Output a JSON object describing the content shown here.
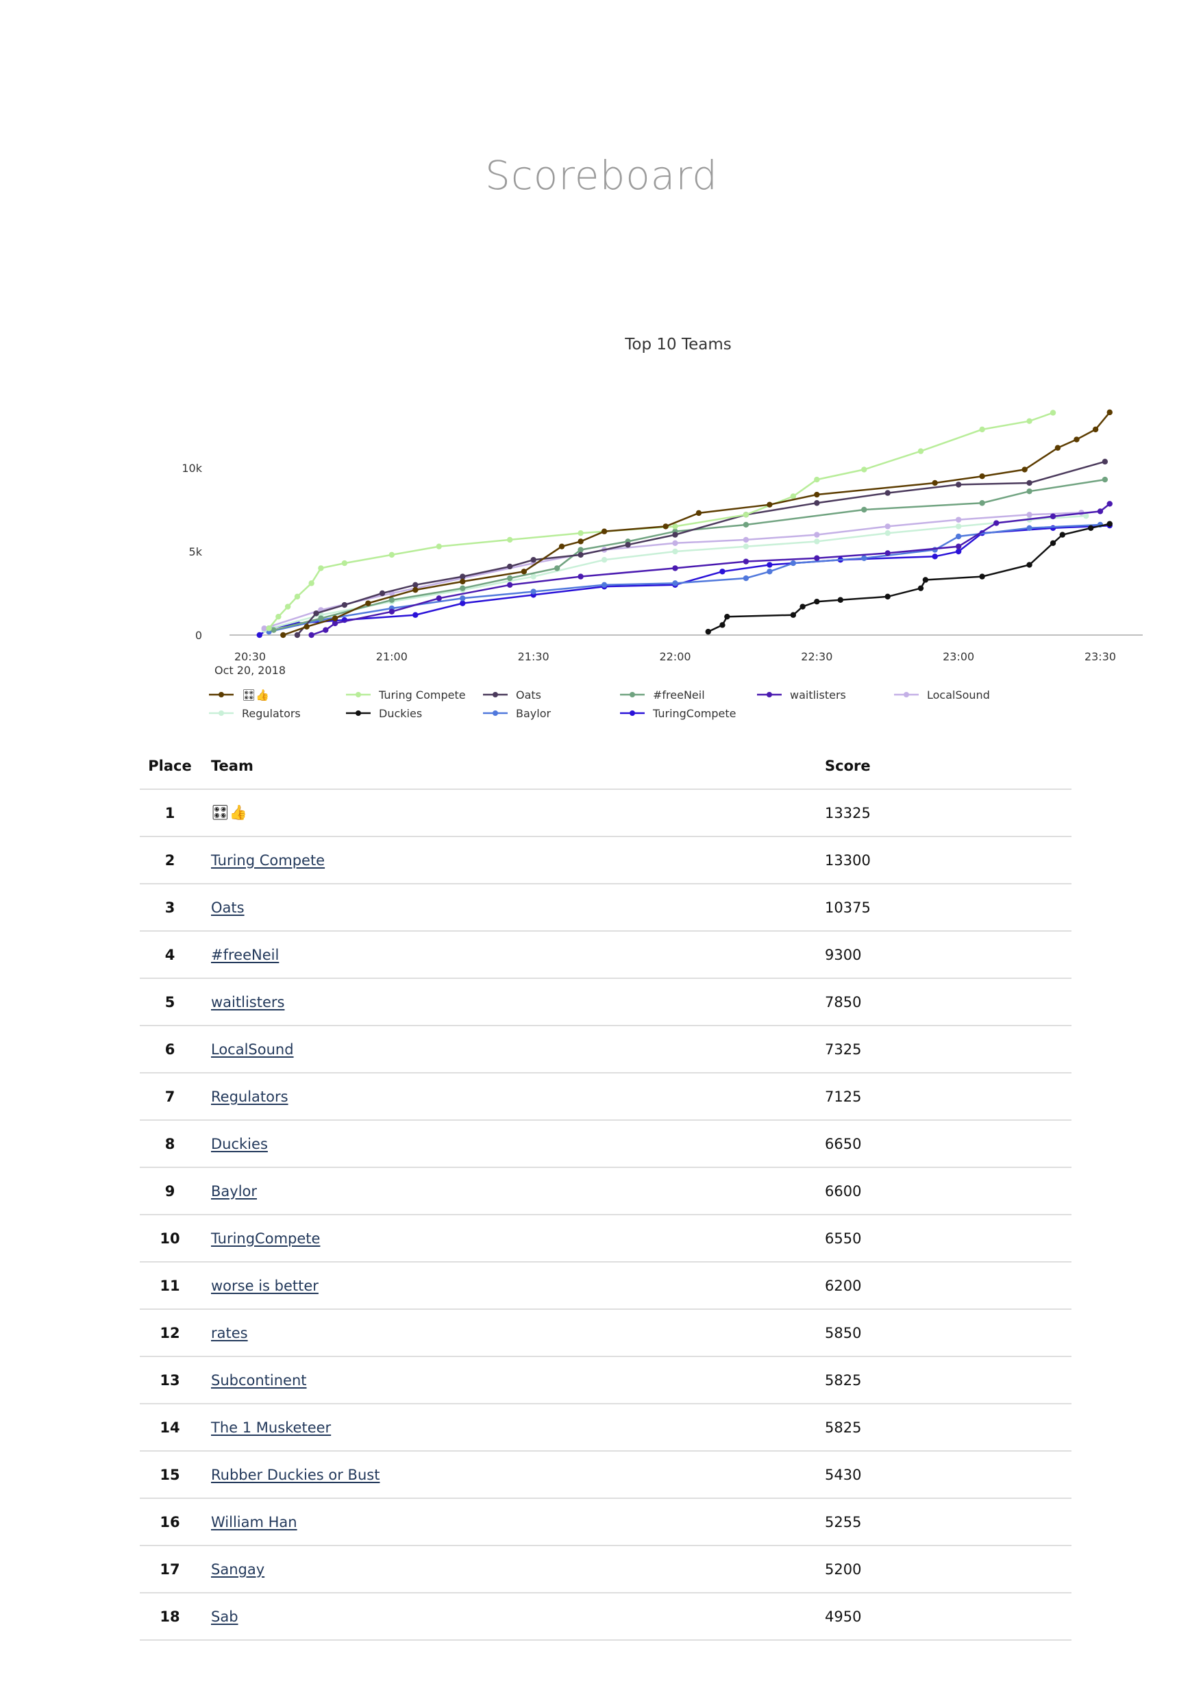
{
  "page": {
    "title": "Scoreboard"
  },
  "colors": {
    "grid_line": "#dedede",
    "link": "#23395b",
    "title": "#9b9b9b"
  },
  "table": {
    "headers": {
      "place": "Place",
      "team": "Team",
      "score": "Score"
    },
    "rows": [
      {
        "place": "1",
        "team": "🎛👍",
        "score": "13325"
      },
      {
        "place": "2",
        "team": "Turing Compete",
        "score": "13300"
      },
      {
        "place": "3",
        "team": "Oats",
        "score": "10375"
      },
      {
        "place": "4",
        "team": "#freeNeil",
        "score": "9300"
      },
      {
        "place": "5",
        "team": "waitlisters",
        "score": "7850"
      },
      {
        "place": "6",
        "team": "LocalSound",
        "score": "7325"
      },
      {
        "place": "7",
        "team": "Regulators",
        "score": "7125"
      },
      {
        "place": "8",
        "team": "Duckies",
        "score": "6650"
      },
      {
        "place": "9",
        "team": "Baylor",
        "score": "6600"
      },
      {
        "place": "10",
        "team": "TuringCompete",
        "score": "6550"
      },
      {
        "place": "11",
        "team": "worse is better",
        "score": "6200"
      },
      {
        "place": "12",
        "team": "rates",
        "score": "5850"
      },
      {
        "place": "13",
        "team": "Subcontinent",
        "score": "5825"
      },
      {
        "place": "14",
        "team": "The 1 Musketeer",
        "score": "5825"
      },
      {
        "place": "15",
        "team": "Rubber Duckies or Bust",
        "score": "5430"
      },
      {
        "place": "16",
        "team": "William Han",
        "score": "5255"
      },
      {
        "place": "17",
        "team": "Sangay",
        "score": "5200"
      },
      {
        "place": "18",
        "team": "Sab",
        "score": "4950"
      }
    ]
  },
  "chart_data": {
    "type": "line",
    "title": "Top 10 Teams",
    "xlabel": "",
    "ylabel": "",
    "x_ticks": [
      "20:30",
      "21:00",
      "21:30",
      "22:00",
      "22:30",
      "23:00",
      "23:30"
    ],
    "x_tick_sublabel": "Oct 20, 2018",
    "xlim": [
      "20:30",
      "23:33"
    ],
    "ylim": [
      0,
      14000
    ],
    "y_ticks": [
      0,
      5000,
      10000
    ],
    "y_tick_labels": [
      "0",
      "5k",
      "10k"
    ],
    "grid": false,
    "legend_position": "bottom",
    "series": [
      {
        "name": "🎛👍",
        "color": "#5c3c00",
        "points": [
          [
            "20:37",
            0
          ],
          [
            "20:42",
            500
          ],
          [
            "20:48",
            1000
          ],
          [
            "20:55",
            1900
          ],
          [
            "21:05",
            2700
          ],
          [
            "21:15",
            3200
          ],
          [
            "21:28",
            3800
          ],
          [
            "21:36",
            5300
          ],
          [
            "21:40",
            5600
          ],
          [
            "21:45",
            6200
          ],
          [
            "21:58",
            6500
          ],
          [
            "22:05",
            7300
          ],
          [
            "22:20",
            7800
          ],
          [
            "22:30",
            8400
          ],
          [
            "22:55",
            9100
          ],
          [
            "23:05",
            9500
          ],
          [
            "23:14",
            9900
          ],
          [
            "23:21",
            11200
          ],
          [
            "23:25",
            11700
          ],
          [
            "23:29",
            12300
          ],
          [
            "23:32",
            13325
          ]
        ]
      },
      {
        "name": "Turing Compete",
        "color": "#b8ed99",
        "points": [
          [
            "20:34",
            400
          ],
          [
            "20:36",
            1100
          ],
          [
            "20:38",
            1700
          ],
          [
            "20:40",
            2300
          ],
          [
            "20:43",
            3100
          ],
          [
            "20:45",
            4000
          ],
          [
            "20:50",
            4300
          ],
          [
            "21:00",
            4800
          ],
          [
            "21:10",
            5300
          ],
          [
            "21:25",
            5700
          ],
          [
            "21:40",
            6100
          ],
          [
            "22:00",
            6500
          ],
          [
            "22:15",
            7200
          ],
          [
            "22:25",
            8300
          ],
          [
            "22:30",
            9300
          ],
          [
            "22:40",
            9900
          ],
          [
            "22:52",
            11000
          ],
          [
            "23:05",
            12300
          ],
          [
            "23:15",
            12800
          ],
          [
            "23:20",
            13300
          ]
        ]
      },
      {
        "name": "Oats",
        "color": "#4b3a5c",
        "points": [
          [
            "20:40",
            0
          ],
          [
            "20:44",
            1300
          ],
          [
            "20:50",
            1800
          ],
          [
            "20:58",
            2500
          ],
          [
            "21:05",
            3000
          ],
          [
            "21:15",
            3500
          ],
          [
            "21:25",
            4100
          ],
          [
            "21:30",
            4500
          ],
          [
            "21:40",
            4800
          ],
          [
            "21:50",
            5400
          ],
          [
            "22:00",
            6000
          ],
          [
            "22:15",
            7200
          ],
          [
            "22:30",
            7900
          ],
          [
            "22:45",
            8500
          ],
          [
            "23:00",
            9000
          ],
          [
            "23:15",
            9100
          ],
          [
            "23:31",
            10375
          ]
        ]
      },
      {
        "name": "#freeNeil",
        "color": "#70a380",
        "points": [
          [
            "20:35",
            300
          ],
          [
            "20:45",
            1000
          ],
          [
            "21:00",
            2100
          ],
          [
            "21:15",
            2800
          ],
          [
            "21:25",
            3400
          ],
          [
            "21:35",
            4000
          ],
          [
            "21:40",
            5100
          ],
          [
            "21:50",
            5600
          ],
          [
            "22:00",
            6200
          ],
          [
            "22:15",
            6600
          ],
          [
            "22:40",
            7500
          ],
          [
            "23:05",
            7900
          ],
          [
            "23:15",
            8600
          ],
          [
            "23:31",
            9300
          ]
        ]
      },
      {
        "name": "waitlisters",
        "color": "#4a1ab0",
        "points": [
          [
            "20:43",
            0
          ],
          [
            "20:46",
            300
          ],
          [
            "20:48",
            700
          ],
          [
            "21:00",
            1400
          ],
          [
            "21:10",
            2200
          ],
          [
            "21:25",
            3000
          ],
          [
            "21:40",
            3500
          ],
          [
            "22:00",
            4000
          ],
          [
            "22:15",
            4400
          ],
          [
            "22:30",
            4600
          ],
          [
            "22:45",
            4900
          ],
          [
            "23:00",
            5300
          ],
          [
            "23:08",
            6700
          ],
          [
            "23:20",
            7100
          ],
          [
            "23:30",
            7400
          ],
          [
            "23:32",
            7850
          ]
        ]
      },
      {
        "name": "LocalSound",
        "color": "#c4b0e6",
        "points": [
          [
            "20:33",
            400
          ],
          [
            "20:45",
            1500
          ],
          [
            "21:00",
            2500
          ],
          [
            "21:15",
            3400
          ],
          [
            "21:30",
            4300
          ],
          [
            "21:45",
            5100
          ],
          [
            "22:00",
            5500
          ],
          [
            "22:15",
            5700
          ],
          [
            "22:30",
            6000
          ],
          [
            "22:45",
            6500
          ],
          [
            "23:00",
            6900
          ],
          [
            "23:15",
            7200
          ],
          [
            "23:26",
            7325
          ]
        ]
      },
      {
        "name": "Regulators",
        "color": "#c9f0d8",
        "points": [
          [
            "20:33",
            300
          ],
          [
            "20:45",
            1200
          ],
          [
            "21:00",
            2000
          ],
          [
            "21:15",
            2700
          ],
          [
            "21:30",
            3500
          ],
          [
            "21:45",
            4500
          ],
          [
            "22:00",
            5000
          ],
          [
            "22:15",
            5300
          ],
          [
            "22:30",
            5600
          ],
          [
            "22:45",
            6100
          ],
          [
            "23:00",
            6500
          ],
          [
            "23:15",
            6900
          ],
          [
            "23:27",
            7125
          ]
        ]
      },
      {
        "name": "Duckies",
        "color": "#111111",
        "points": [
          [
            "22:07",
            200
          ],
          [
            "22:10",
            600
          ],
          [
            "22:11",
            1100
          ],
          [
            "22:25",
            1200
          ],
          [
            "22:27",
            1700
          ],
          [
            "22:30",
            2000
          ],
          [
            "22:35",
            2100
          ],
          [
            "22:45",
            2300
          ],
          [
            "22:52",
            2800
          ],
          [
            "22:53",
            3300
          ],
          [
            "23:05",
            3500
          ],
          [
            "23:15",
            4200
          ],
          [
            "23:20",
            5500
          ],
          [
            "23:22",
            6000
          ],
          [
            "23:28",
            6400
          ],
          [
            "23:32",
            6650
          ]
        ]
      },
      {
        "name": "Baylor",
        "color": "#5078dc",
        "points": [
          [
            "20:34",
            200
          ],
          [
            "20:45",
            900
          ],
          [
            "21:00",
            1600
          ],
          [
            "21:15",
            2200
          ],
          [
            "21:30",
            2600
          ],
          [
            "21:45",
            3000
          ],
          [
            "22:00",
            3100
          ],
          [
            "22:15",
            3400
          ],
          [
            "22:20",
            3800
          ],
          [
            "22:25",
            4300
          ],
          [
            "22:40",
            4600
          ],
          [
            "22:55",
            5100
          ],
          [
            "23:00",
            5900
          ],
          [
            "23:15",
            6400
          ],
          [
            "23:30",
            6600
          ]
        ]
      },
      {
        "name": "TuringCompete",
        "color": "#2a12d8",
        "points": [
          [
            "20:32",
            0
          ],
          [
            "20:34",
            400
          ],
          [
            "20:40",
            700
          ],
          [
            "20:50",
            900
          ],
          [
            "21:05",
            1200
          ],
          [
            "21:15",
            1900
          ],
          [
            "21:30",
            2400
          ],
          [
            "21:45",
            2900
          ],
          [
            "22:00",
            3000
          ],
          [
            "22:10",
            3800
          ],
          [
            "22:20",
            4200
          ],
          [
            "22:35",
            4500
          ],
          [
            "22:55",
            4700
          ],
          [
            "23:00",
            5000
          ],
          [
            "23:05",
            6100
          ],
          [
            "23:20",
            6400
          ],
          [
            "23:32",
            6550
          ]
        ]
      }
    ]
  }
}
